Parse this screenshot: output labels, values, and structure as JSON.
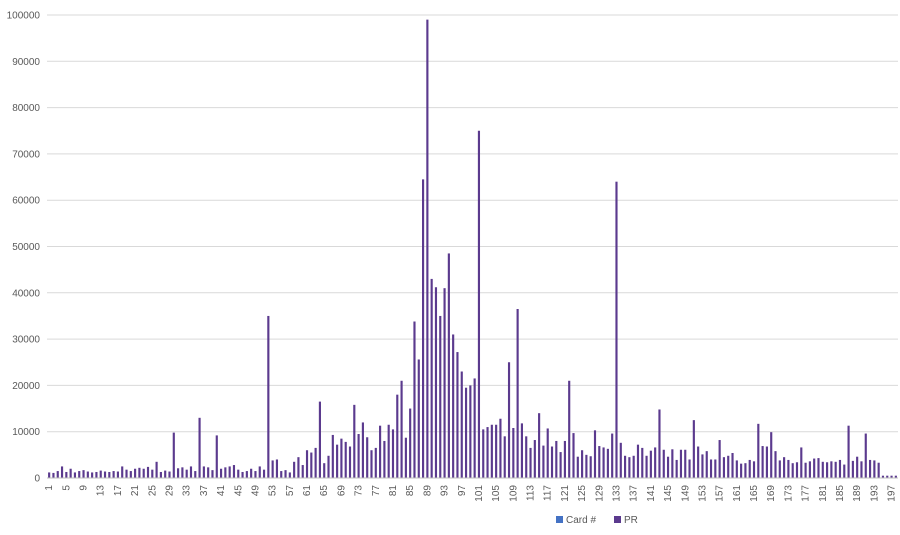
{
  "chart_data": {
    "type": "bar",
    "title": "",
    "xlabel": "",
    "ylabel": "",
    "ylim": [
      0,
      100000
    ],
    "yticks": [
      0,
      10000,
      20000,
      30000,
      40000,
      50000,
      60000,
      70000,
      80000,
      90000,
      100000
    ],
    "grid": true,
    "legend_position": "bottom",
    "x_start": 1,
    "x_end": 198,
    "x_tick_labels": [
      "1",
      "5",
      "9",
      "13",
      "17",
      "21",
      "25",
      "29",
      "33",
      "37",
      "41",
      "45",
      "49",
      "53",
      "57",
      "61",
      "65",
      "69",
      "73",
      "77",
      "81",
      "85",
      "89",
      "93",
      "97",
      "101",
      "105",
      "109",
      "113",
      "117",
      "121",
      "125",
      "129",
      "133",
      "137",
      "141",
      "145",
      "149",
      "153",
      "157",
      "161",
      "165",
      "169",
      "173",
      "177",
      "181",
      "185",
      "189",
      "193",
      "197"
    ],
    "colors": {
      "Card #": "#4472c4",
      "PR": "#5b3a8e"
    },
    "series": [
      {
        "name": "Card #",
        "values": []
      },
      {
        "name": "PR",
        "values": [
          1200,
          1100,
          1500,
          2500,
          1300,
          2000,
          1200,
          1500,
          1700,
          1400,
          1200,
          1300,
          1600,
          1400,
          1300,
          1500,
          1400,
          2500,
          1800,
          1500,
          2000,
          2200,
          2000,
          2400,
          1800,
          3500,
          1300,
          1600,
          1400,
          9800,
          2100,
          2300,
          1800,
          2500,
          1500,
          13000,
          2500,
          2300,
          1700,
          9200,
          2000,
          2300,
          2500,
          2800,
          1800,
          1300,
          1500,
          2000,
          1500,
          2500,
          1800,
          35000,
          3800,
          4000,
          1500,
          1700,
          1200,
          3500,
          4500,
          2800,
          6000,
          5500,
          6500,
          16500,
          3200,
          4800,
          9300,
          7200,
          8500,
          7800,
          6800,
          15800,
          9500,
          12000,
          8800,
          6000,
          6500,
          11300,
          8000,
          11500,
          10500,
          18000,
          21000,
          8700,
          15000,
          33800,
          25600,
          64500,
          99000,
          43000,
          41200,
          35000,
          41000,
          48500,
          31000,
          27200,
          23000,
          19500,
          20000,
          21500,
          75000,
          10500,
          11000,
          11500,
          11500,
          12800,
          9000,
          25000,
          10800,
          36500,
          11800,
          9000,
          6500,
          8200,
          14000,
          7000,
          10700,
          6800,
          8000,
          5600,
          8000,
          21000,
          9700,
          4600,
          6000,
          5000,
          4700,
          10300,
          6900,
          6600,
          6300,
          9600,
          64000,
          7600,
          4800,
          4500,
          4800,
          7200,
          6500,
          4800,
          5900,
          6600,
          14800,
          6100,
          4600,
          6200,
          3900,
          6100,
          6100,
          4000,
          12500,
          6800,
          5100,
          5800,
          4000,
          4000,
          8200,
          4500,
          4800,
          5400,
          3800,
          3100,
          3200,
          3900,
          3600,
          11700,
          6900,
          6800,
          9900,
          5800,
          3800,
          4500,
          3900,
          3200,
          3400,
          6600,
          3300,
          3600,
          4200,
          4300,
          3500,
          3400,
          3600,
          3500,
          3900,
          2900,
          11300,
          3700,
          4600,
          3600,
          9600,
          3900,
          3800,
          3300,
          500,
          500,
          500,
          500
        ]
      }
    ]
  }
}
